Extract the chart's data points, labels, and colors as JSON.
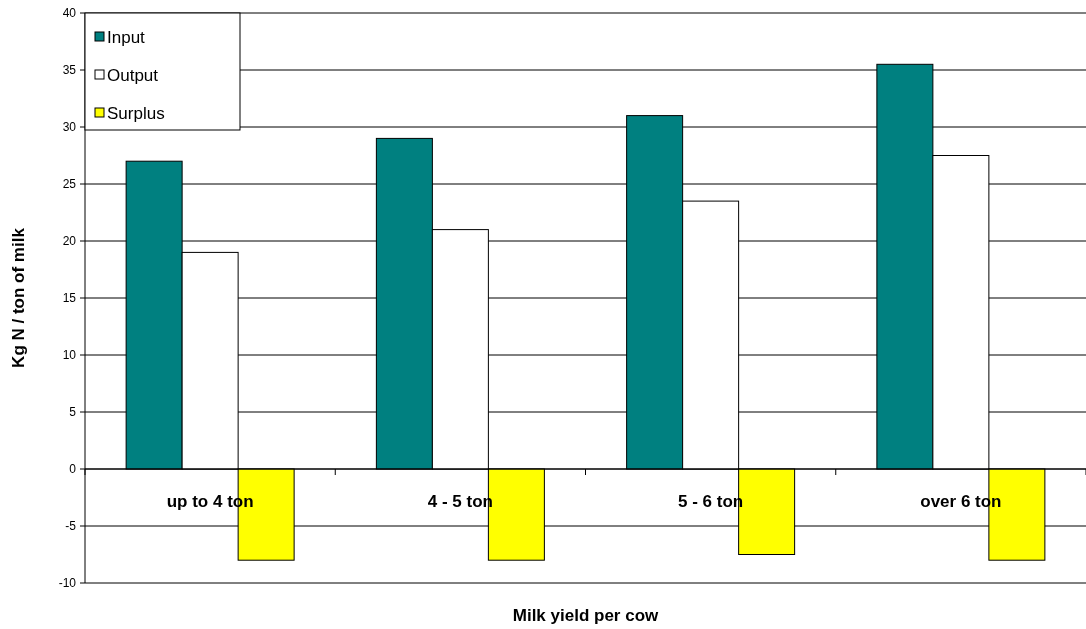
{
  "chart_data": {
    "type": "bar",
    "xlabel": "Milk yield per cow",
    "ylabel": "Kg N / ton of milk",
    "categories": [
      "up to 4 ton",
      "4 - 5 ton",
      "5 - 6 ton",
      "over 6 ton"
    ],
    "series": [
      {
        "name": "Input",
        "color": "#008080",
        "values": [
          27,
          29,
          31,
          35.5
        ]
      },
      {
        "name": "Output",
        "color": "#ffffff",
        "values": [
          19,
          21,
          23.5,
          27.5
        ]
      },
      {
        "name": "Surplus",
        "color": "#ffff00",
        "values": [
          -8,
          -8,
          -7.5,
          -8
        ]
      }
    ],
    "ylim": [
      -10,
      40
    ],
    "yticks": [
      -10,
      -5,
      0,
      5,
      10,
      15,
      20,
      25,
      30,
      35,
      40
    ],
    "grid": "y",
    "legend": "top left"
  }
}
